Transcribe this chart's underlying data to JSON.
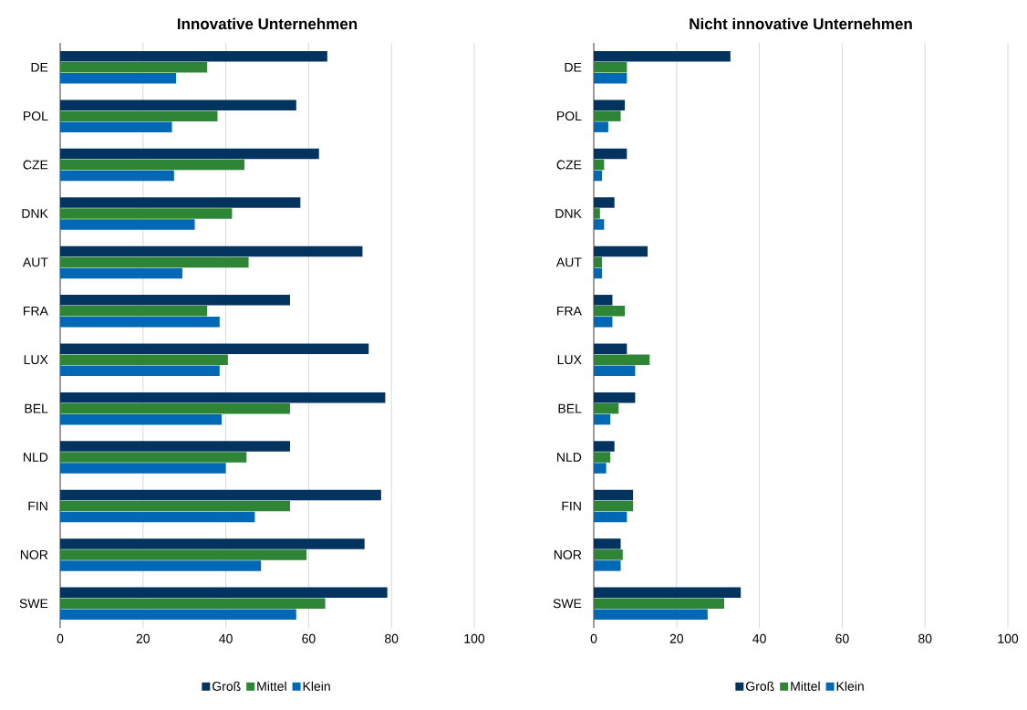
{
  "chart_data": [
    {
      "type": "bar",
      "orientation": "horizontal",
      "title": "Innovative Unternehmen",
      "categories": [
        "DE",
        "POL",
        "CZE",
        "DNK",
        "AUT",
        "FRA",
        "LUX",
        "BEL",
        "NLD",
        "FIN",
        "NOR",
        "SWE"
      ],
      "series": [
        {
          "name": "Groß",
          "color": "#03345f",
          "values": [
            64.5,
            57,
            62.5,
            58,
            73,
            55.5,
            74.5,
            78.5,
            55.5,
            77.5,
            73.5,
            79
          ]
        },
        {
          "name": "Mittel",
          "color": "#2e8535",
          "values": [
            35.5,
            38,
            44.5,
            41.5,
            45.5,
            35.5,
            40.5,
            55.5,
            45,
            55.5,
            59.5,
            64
          ]
        },
        {
          "name": "Klein",
          "color": "#0068b5",
          "values": [
            28,
            27,
            27.5,
            32.5,
            29.5,
            38.5,
            38.5,
            39,
            40,
            47,
            48.5,
            57
          ]
        }
      ],
      "xlim": [
        0,
        100
      ],
      "xticks": [
        0,
        20,
        40,
        60,
        80,
        100
      ],
      "grid": "x",
      "legend": "bottom"
    },
    {
      "type": "bar",
      "orientation": "horizontal",
      "title": "Nicht innovative Unternehmen",
      "categories": [
        "DE",
        "POL",
        "CZE",
        "DNK",
        "AUT",
        "FRA",
        "LUX",
        "BEL",
        "NLD",
        "FIN",
        "NOR",
        "SWE"
      ],
      "series": [
        {
          "name": "Groß",
          "color": "#03345f",
          "values": [
            33,
            7.5,
            8,
            5,
            13,
            4.5,
            8,
            10,
            5,
            9.5,
            6.5,
            35.5
          ]
        },
        {
          "name": "Mittel",
          "color": "#2e8535",
          "values": [
            8,
            6.5,
            2.5,
            1.5,
            2,
            7.5,
            13.5,
            6,
            4,
            9.5,
            7,
            31.5
          ]
        },
        {
          "name": "Klein",
          "color": "#0068b5",
          "values": [
            8,
            3.5,
            2,
            2.5,
            2,
            4.5,
            10,
            4,
            3,
            8,
            6.5,
            27.5
          ]
        }
      ],
      "xlim": [
        0,
        100
      ],
      "xticks": [
        0,
        20,
        40,
        60,
        80,
        100
      ],
      "grid": "x",
      "legend": "bottom"
    }
  ]
}
